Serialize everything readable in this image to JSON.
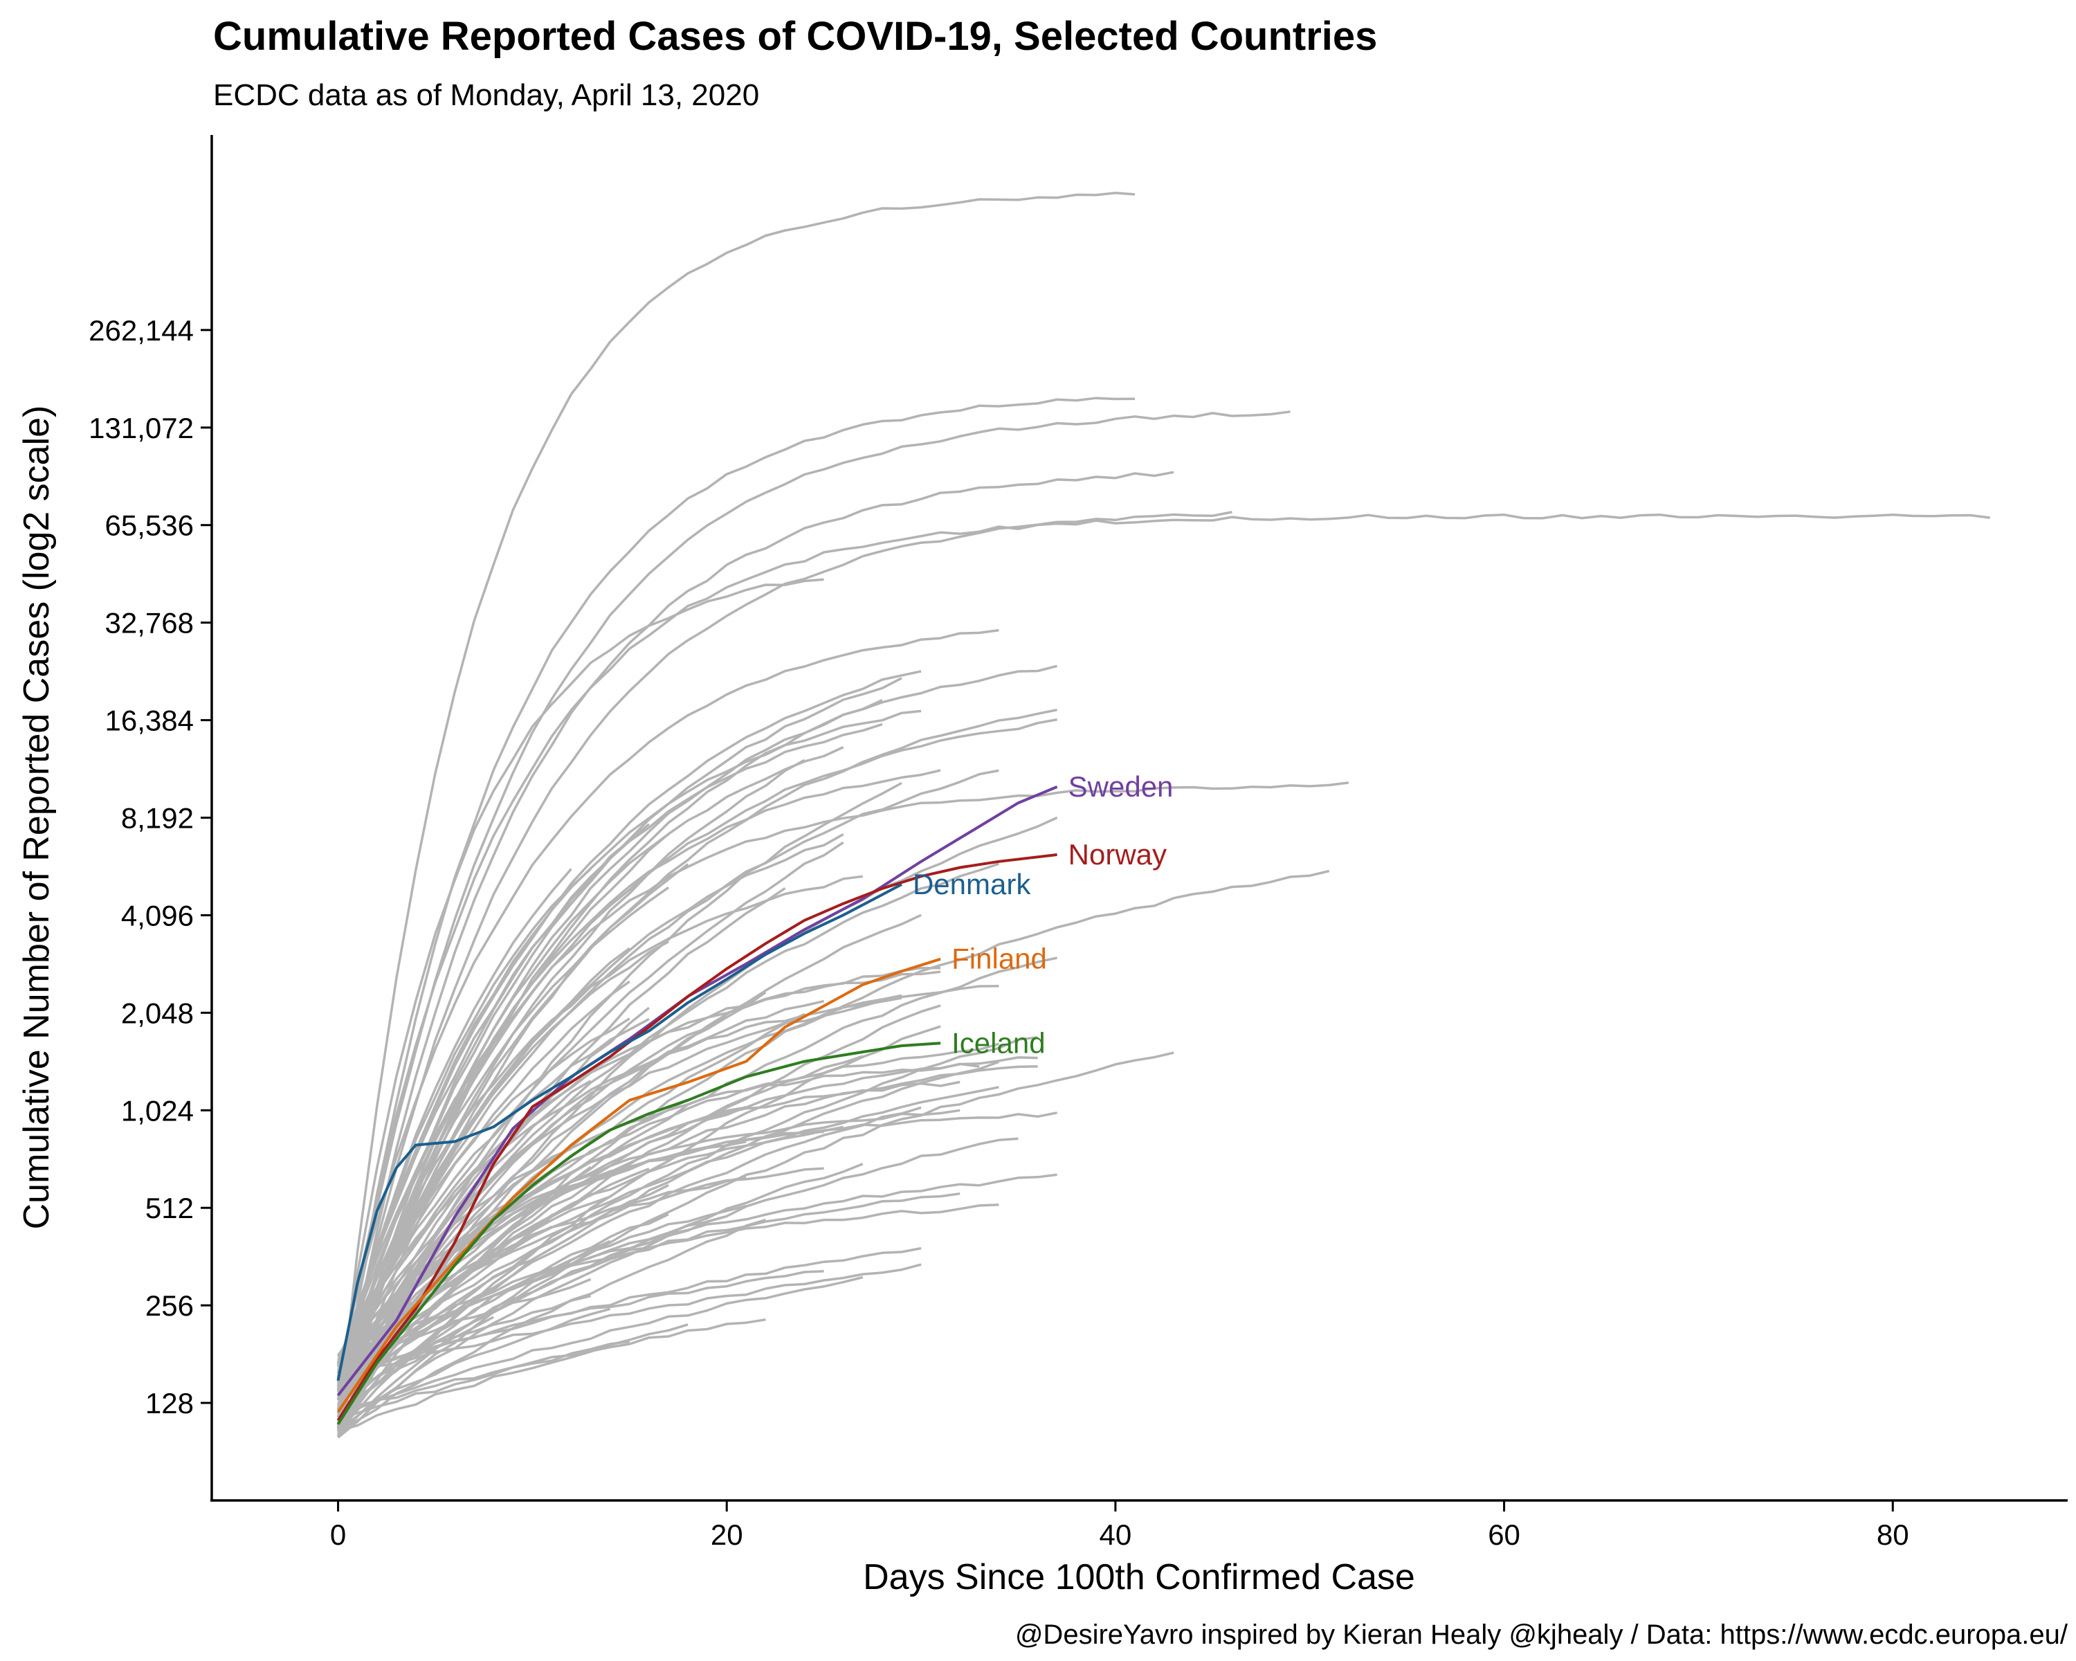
{
  "chart_data": {
    "type": "line",
    "title": "Cumulative Reported Cases of COVID-19, Selected Countries",
    "subtitle": "ECDC data as of Monday, April 13, 2020",
    "xlabel": "Days Since 100th Confirmed Case",
    "ylabel": "Cumulative Number of Reported Cases (log2 scale)",
    "caption": "@DesireYavro inspired by Kieran Healy @kjhealy / Data: https://www.ecdc.europa.eu/",
    "y_scale": "log2",
    "xlim": [
      -6.5,
      89
    ],
    "ylim": [
      64,
      1048576
    ],
    "x_ticks": [
      {
        "value": 0,
        "label": "0"
      },
      {
        "value": 20,
        "label": "20"
      },
      {
        "value": 40,
        "label": "40"
      },
      {
        "value": 60,
        "label": "60"
      },
      {
        "value": 80,
        "label": "80"
      }
    ],
    "y_ticks": [
      {
        "value": 128,
        "label": "128"
      },
      {
        "value": 256,
        "label": "256"
      },
      {
        "value": 512,
        "label": "512"
      },
      {
        "value": 1024,
        "label": "1,024"
      },
      {
        "value": 2048,
        "label": "2,048"
      },
      {
        "value": 4096,
        "label": "4,096"
      },
      {
        "value": 8192,
        "label": "8,192"
      },
      {
        "value": 16384,
        "label": "16,384"
      },
      {
        "value": 32768,
        "label": "32,768"
      },
      {
        "value": 65536,
        "label": "65,536"
      },
      {
        "value": 131072,
        "label": "131,072"
      },
      {
        "value": 262144,
        "label": "262,144"
      }
    ],
    "highlight_series": [
      {
        "name": "Sweden",
        "color": "#7040a0",
        "x": [
          0,
          3,
          6,
          9,
          12,
          15,
          18,
          21,
          24,
          27,
          30,
          33,
          35,
          37
        ],
        "y": [
          135,
          230,
          480,
          900,
          1300,
          1700,
          2300,
          2900,
          3700,
          4600,
          6000,
          7700,
          9100,
          10200
        ]
      },
      {
        "name": "Norway",
        "color": "#a51d1d",
        "x": [
          0,
          2,
          4,
          6,
          8,
          10,
          12,
          14,
          16,
          18,
          20,
          22,
          24,
          26,
          28,
          30,
          32,
          34,
          37
        ],
        "y": [
          113,
          175,
          250,
          400,
          700,
          1050,
          1250,
          1500,
          1850,
          2300,
          2800,
          3350,
          3950,
          4450,
          4950,
          5400,
          5750,
          6000,
          6300
        ]
      },
      {
        "name": "Denmark",
        "color": "#1c5f8e",
        "x": [
          0,
          1,
          2,
          3,
          4,
          5,
          6,
          8,
          10,
          12,
          14,
          16,
          18,
          20,
          22,
          24,
          26,
          29
        ],
        "y": [
          150,
          300,
          500,
          680,
          800,
          810,
          820,
          910,
          1100,
          1300,
          1550,
          1800,
          2200,
          2600,
          3100,
          3600,
          4100,
          5100
        ]
      },
      {
        "name": "Finland",
        "color": "#dd6a10",
        "x": [
          0,
          3,
          6,
          9,
          12,
          15,
          18,
          21,
          23,
          25,
          27,
          29,
          31
        ],
        "y": [
          120,
          220,
          350,
          550,
          800,
          1100,
          1250,
          1450,
          1850,
          2150,
          2500,
          2750,
          3000
        ]
      },
      {
        "name": "Iceland",
        "color": "#2e7d1f",
        "x": [
          0,
          2,
          4,
          6,
          8,
          10,
          12,
          14,
          16,
          18,
          21,
          24,
          27,
          29,
          31
        ],
        "y": [
          110,
          170,
          240,
          340,
          470,
          600,
          740,
          890,
          1000,
          1100,
          1300,
          1450,
          1550,
          1620,
          1650
        ]
      }
    ]
  }
}
